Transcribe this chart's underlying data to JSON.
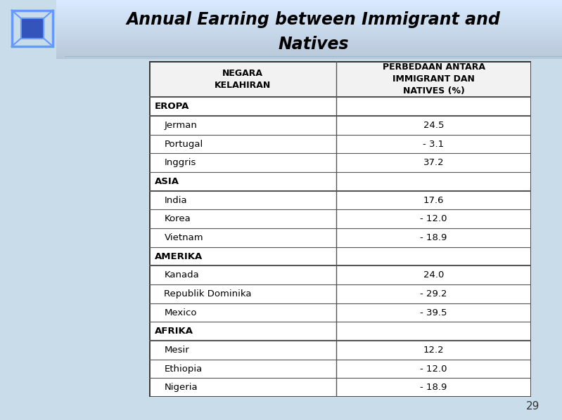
{
  "title_line1": "Annual Earning between Immigrant and",
  "title_line2": "Natives",
  "col1_header": "NEGARA\nKELAHIRAN",
  "col2_header": "PERBEDAAN ANTARA\nIMMIGRANT DAN\nNATIVES (%)",
  "sections": [
    {
      "section": "EROPA",
      "rows": [
        {
          "name": "Jerman",
          "value": "24.5"
        },
        {
          "name": "Portugal",
          "value": "- 3.1"
        },
        {
          "name": "Inggris",
          "value": "37.2"
        }
      ]
    },
    {
      "section": "ASIA",
      "rows": [
        {
          "name": "India",
          "value": "17.6"
        },
        {
          "name": "Korea",
          "value": "- 12.0"
        },
        {
          "name": "Vietnam",
          "value": "- 18.9"
        }
      ]
    },
    {
      "section": "AMERIKA",
      "rows": [
        {
          "name": "Kanada",
          "value": "24.0"
        },
        {
          "name": "Republik Dominika",
          "value": "- 29.2"
        },
        {
          "name": "Mexico",
          "value": "- 39.5"
        }
      ]
    },
    {
      "section": "AFRIKA",
      "rows": [
        {
          "name": "Mesir",
          "value": "12.2"
        },
        {
          "name": "Ethiopia",
          "value": "- 12.0"
        },
        {
          "name": "Nigeria",
          "value": "- 18.9"
        }
      ]
    }
  ],
  "bg_color": "#b8d4e8",
  "table_bg": "#ffffff",
  "title_color": "#000000",
  "page_num": "29",
  "header_top_color": "#ddeeff",
  "header_bottom_color": "#ffffff",
  "logo_bg": "#1a1a3a"
}
